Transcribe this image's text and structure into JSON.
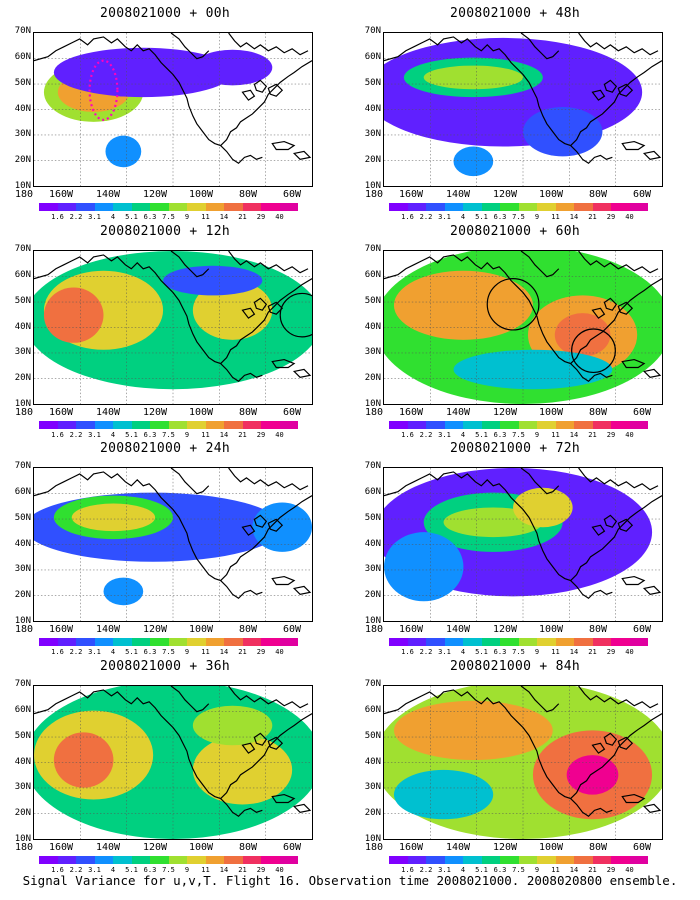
{
  "panels": [
    {
      "title": "2008021000 + 00h",
      "col": 0,
      "row": 0,
      "level": 0
    },
    {
      "title": "2008021000 + 48h",
      "col": 1,
      "row": 0,
      "level": 4
    },
    {
      "title": "2008021000 + 12h",
      "col": 0,
      "row": 1,
      "level": 1
    },
    {
      "title": "2008021000 + 60h",
      "col": 1,
      "row": 1,
      "level": 5
    },
    {
      "title": "2008021000 + 24h",
      "col": 0,
      "row": 2,
      "level": 2
    },
    {
      "title": "2008021000 + 72h",
      "col": 1,
      "row": 2,
      "level": 6
    },
    {
      "title": "2008021000 + 36h",
      "col": 0,
      "row": 3,
      "level": 3
    },
    {
      "title": "2008021000 + 84h",
      "col": 1,
      "row": 3,
      "level": 7
    }
  ],
  "lat_labels": [
    "70N",
    "60N",
    "50N",
    "40N",
    "30N",
    "20N",
    "10N"
  ],
  "lon_labels": [
    "180",
    "160W",
    "140W",
    "120W",
    "100W",
    "80W",
    "60W"
  ],
  "colorbar": {
    "labels": [
      "1.6",
      "2.2",
      "3.1",
      "4",
      "5.1",
      "6.3",
      "7.5",
      "9",
      "11",
      "14",
      "21",
      "29",
      "40"
    ],
    "colors": [
      "#8000ff",
      "#6020ff",
      "#3050ff",
      "#1090ff",
      "#00c0d0",
      "#00d080",
      "#30e030",
      "#a0e030",
      "#e0d030",
      "#f0a030",
      "#f07040",
      "#f03060",
      "#f00090",
      "#e000a0"
    ]
  },
  "caption": "Signal Variance for u,v,T. Flight 16. Observation time 2008021000. 2008020800 ensemble."
}
